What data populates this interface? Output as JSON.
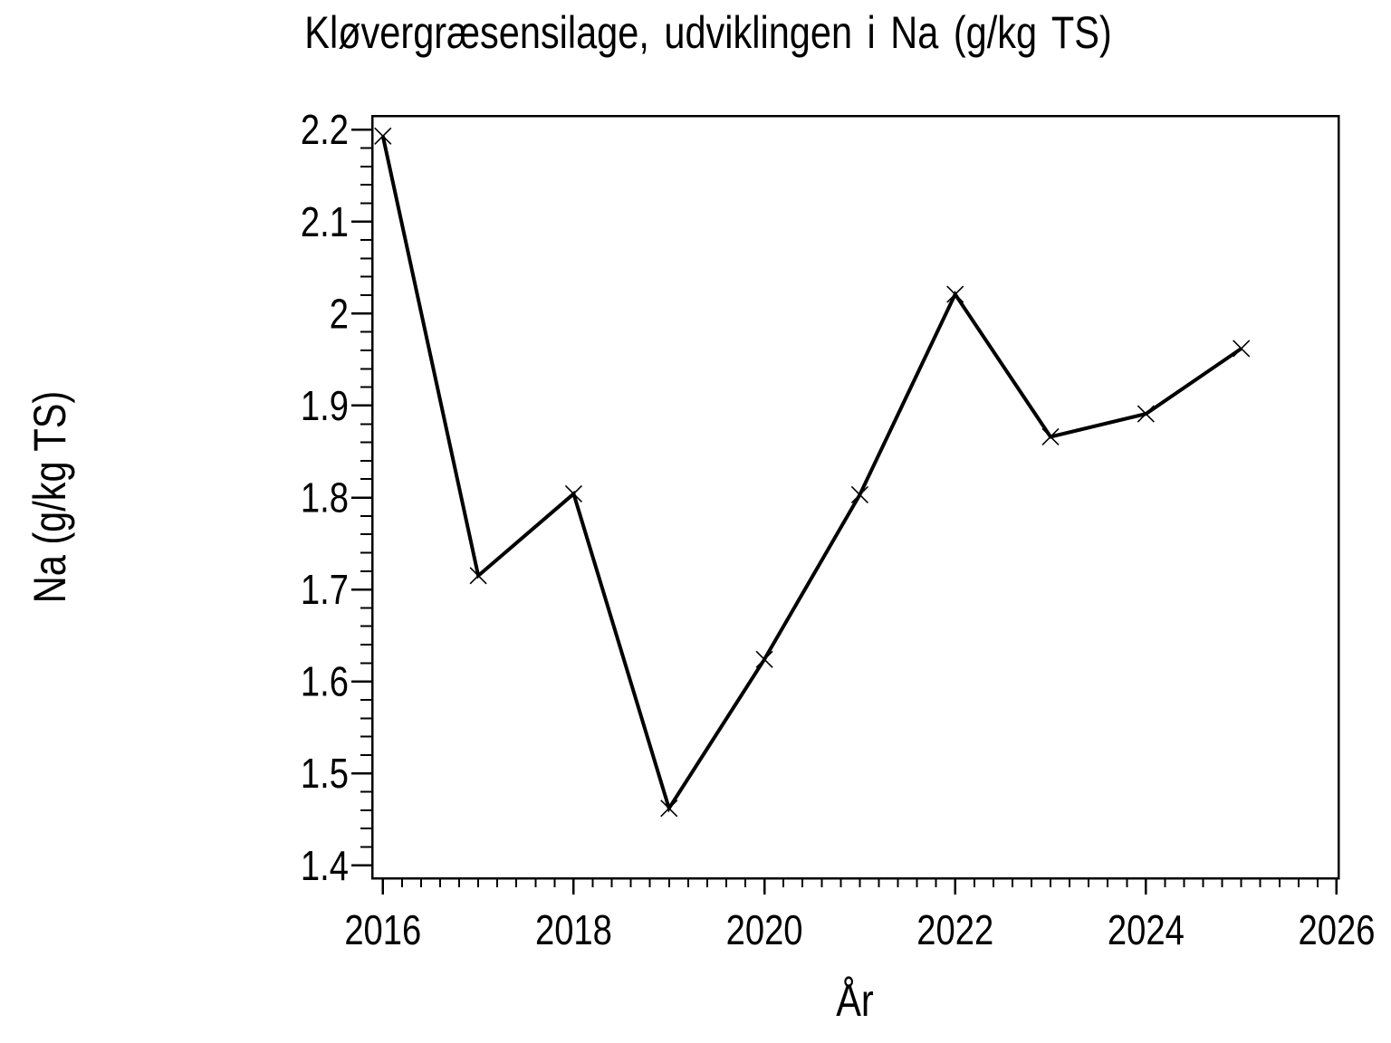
{
  "chart_data": {
    "type": "line",
    "title": "Kløvergræsensilage, udviklingen i Na (g/kg TS)",
    "xlabel": "År",
    "ylabel": "Na (g/kg TS)",
    "x": [
      2016,
      2017,
      2018,
      2019,
      2020,
      2021,
      2022,
      2023,
      2024,
      2025
    ],
    "series": [
      {
        "name": "Na",
        "values": [
          2.193,
          1.715,
          1.804,
          1.462,
          1.624,
          1.803,
          2.021,
          1.866,
          1.891,
          1.962
        ]
      }
    ],
    "xlim": [
      2015.888,
      2026.019
    ],
    "ylim": [
      1.386,
      2.215
    ],
    "x_major_ticks": [
      2016,
      2018,
      2020,
      2022,
      2024,
      2026
    ],
    "x_tick_labels": [
      "2016",
      "2018",
      "2020",
      "2022",
      "2024",
      "2026"
    ],
    "x_minor_step": 0.2,
    "y_major_ticks": [
      1.4,
      1.5,
      1.6,
      1.7,
      1.8,
      1.9,
      2.0,
      2.1,
      2.2
    ],
    "y_tick_labels": [
      "1.4",
      "1.5",
      "1.6",
      "1.7",
      "1.8",
      "1.9",
      "2",
      "2.1",
      "2.2"
    ],
    "y_minor_step": 0.02,
    "marker": "x",
    "line_color": "#000000",
    "marker_color": "#000000",
    "axis_color": "#000000",
    "background_color": "#ffffff",
    "grid": false,
    "legend": null
  }
}
